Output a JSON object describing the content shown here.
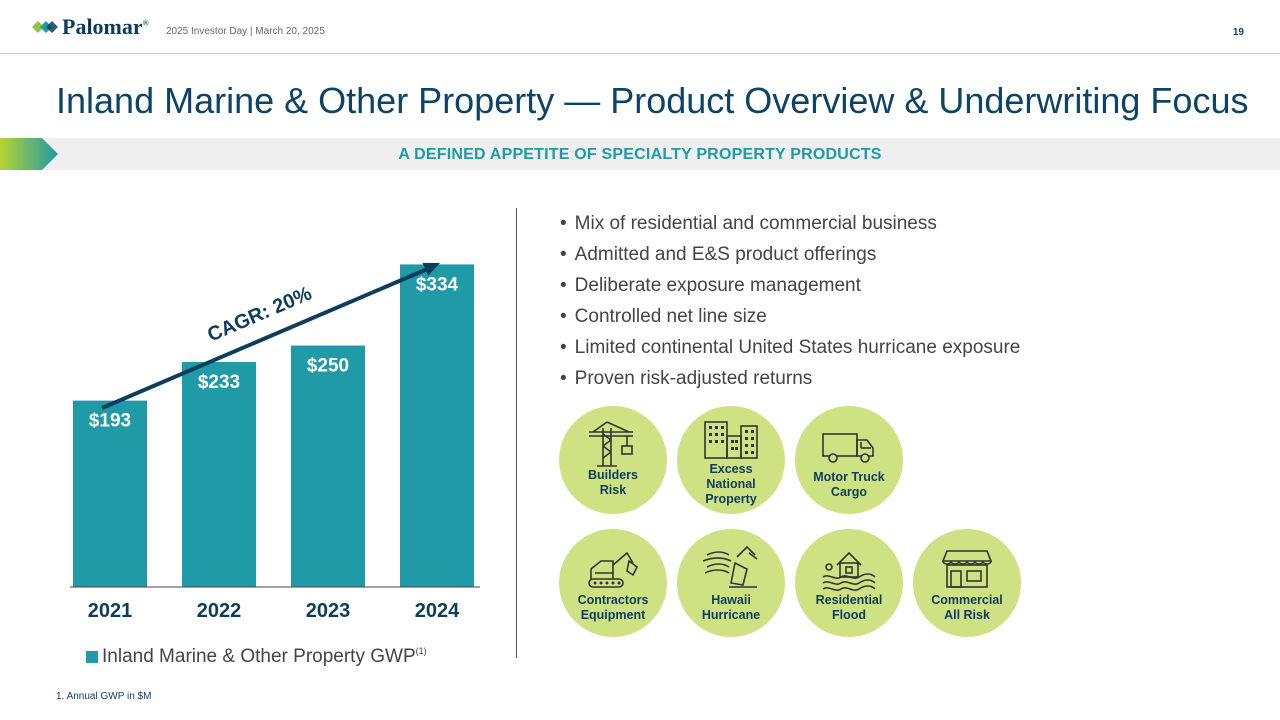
{
  "header": {
    "logo_text": "Palomar",
    "logo_mark": "®",
    "subtitle": "2025 Investor Day | March 20, 2025",
    "page_number": "19"
  },
  "title": "Inland Marine & Other Property — Product Overview & Underwriting Focus",
  "banner": "A DEFINED APPETITE OF SPECIALTY PROPERTY PRODUCTS",
  "chart_data": {
    "type": "bar",
    "categories": [
      "2021",
      "2022",
      "2023",
      "2024"
    ],
    "values": [
      193,
      233,
      250,
      334
    ],
    "value_labels": [
      "$193",
      "$233",
      "$250",
      "$334"
    ],
    "series": [
      {
        "name": "Inland Marine & Other Property GWP",
        "values": [
          193,
          233,
          250,
          334
        ]
      }
    ],
    "legend_superscript": "(1)",
    "annotation": "CAGR: 20%",
    "ylim": [
      0,
      380
    ],
    "bar_color": "#1f9aa6",
    "legend_position": "bottom"
  },
  "bullets": [
    "Mix of residential and commercial business",
    "Admitted and E&S product offerings",
    "Deliberate exposure management",
    "Controlled net line size",
    "Limited continental United States hurricane exposure",
    "Proven risk-adjusted returns"
  ],
  "products": [
    {
      "label": "Builders\nRisk",
      "icon": "crane-icon"
    },
    {
      "label": "Excess\nNational\nProperty",
      "icon": "buildings-icon"
    },
    {
      "label": "Motor Truck\nCargo",
      "icon": "truck-icon"
    },
    {
      "label": "Contractors\nEquipment",
      "icon": "excavator-icon"
    },
    {
      "label": "Hawaii\nHurricane",
      "icon": "hurricane-icon"
    },
    {
      "label": "Residential\nFlood",
      "icon": "flood-house-icon"
    },
    {
      "label": "Commercial\nAll Risk",
      "icon": "storefront-icon"
    }
  ],
  "colors": {
    "accent": "#1f9aa6",
    "navy": "#0d4466",
    "circle": "#cfe283"
  },
  "footnote": "1. Annual GWP in $M"
}
